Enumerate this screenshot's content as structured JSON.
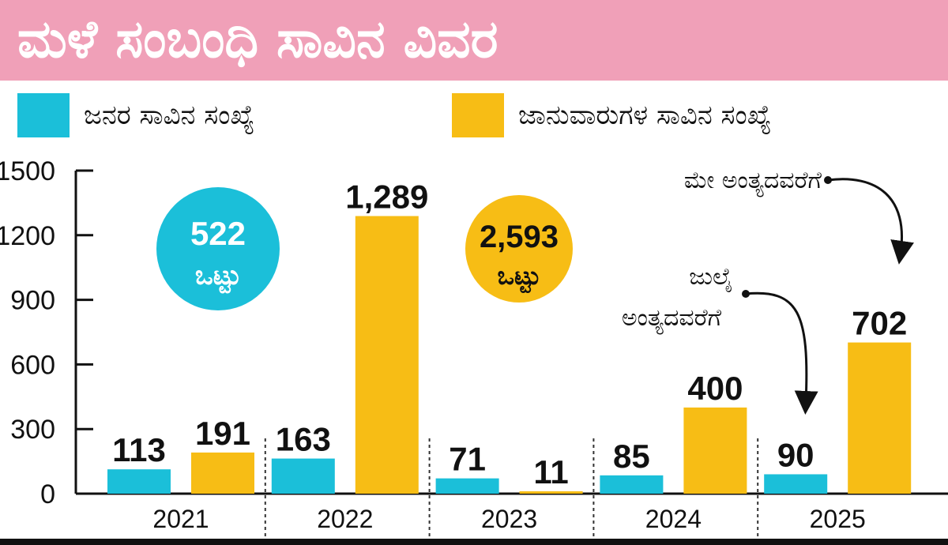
{
  "title": "ಮಳೆ ಸಂಬಂಧಿ ಸಾವಿನ ವಿವರ",
  "colors": {
    "people": "#1bbfd9",
    "animals": "#f7bd15",
    "title_band": "#f0a0b8"
  },
  "legend": {
    "people": "ಜನರ ಸಾವಿನ ಸಂಖ್ಯೆ",
    "animals": "ಜಾನುವಾರುಗಳ ಸಾವಿನ ಸಂಖ್ಯೆ"
  },
  "totals": {
    "people": {
      "value": "522",
      "label": "ಒಟ್ಟು"
    },
    "animals": {
      "value": "2,593",
      "label": "ಒಟ್ಟು"
    }
  },
  "annotations": {
    "may": "ಮೇ ಅಂತ್ಯದವರೆಗೆ",
    "july_line1": "ಜುಲೈ",
    "july_line2": "ಅಂತ್ಯದವರೆಗೆ"
  },
  "chart_data": {
    "type": "bar",
    "categories": [
      "2021",
      "2022",
      "2023",
      "2024",
      "2025"
    ],
    "series": [
      {
        "name": "ಜನರ ಸಾವಿನ ಸಂಖ್ಯೆ",
        "values": [
          113,
          163,
          71,
          85,
          90
        ],
        "labels": [
          "113",
          "163",
          "71",
          "85",
          "90"
        ]
      },
      {
        "name": "ಜಾನುವಾರುಗಳ ಸಾವಿನ ಸಂಖ್ಯೆ",
        "values": [
          191,
          1289,
          11,
          400,
          702
        ],
        "labels": [
          "191",
          "1,289",
          "11",
          "400",
          "702"
        ]
      }
    ],
    "yticks": [
      0,
      300,
      600,
      900,
      1200,
      1500
    ],
    "ylim": [
      0,
      1500
    ],
    "grid": false
  }
}
